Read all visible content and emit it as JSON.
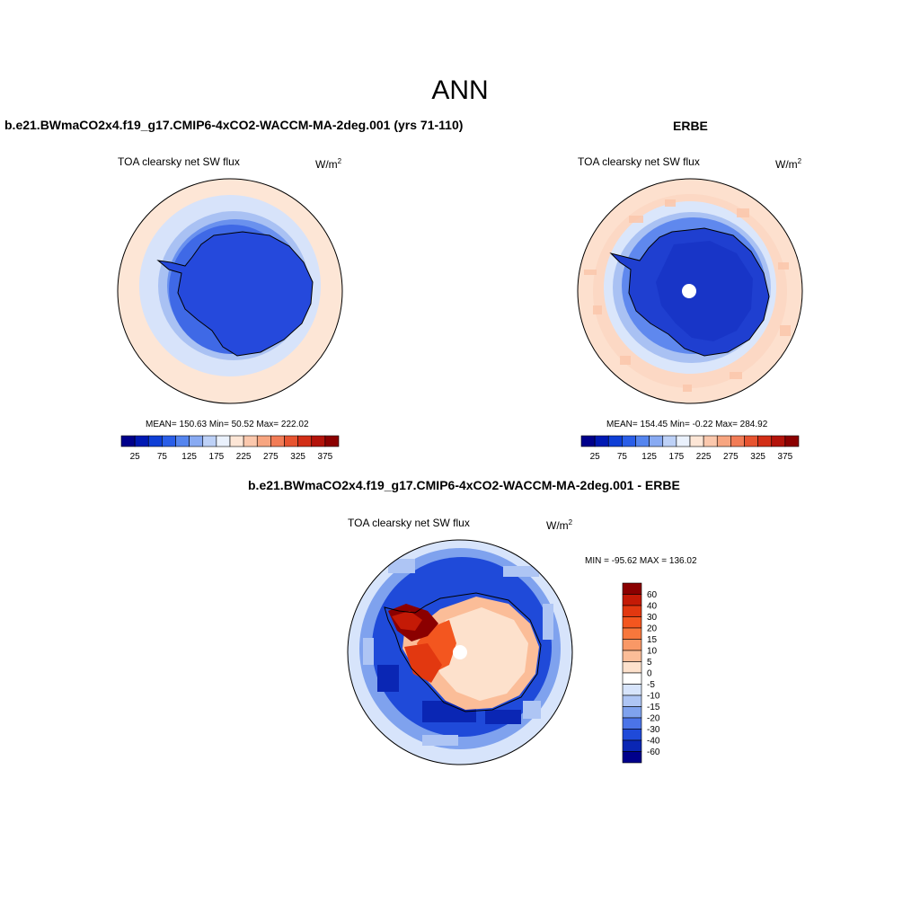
{
  "figure": {
    "title": "ANN"
  },
  "panels": {
    "model": {
      "title": "b.e21.BWmaCO2x4.f19_g17.CMIP6-4xCO2-WACCM-MA-2deg.001 (yrs 71-110)",
      "subtitle": "TOA clearsky net SW flux",
      "units_base": "W/m",
      "units_exp": "2",
      "stats": "MEAN= 150.63  Min=  50.52  Max= 222.02"
    },
    "obs": {
      "title": "ERBE",
      "subtitle": "TOA clearsky net SW flux",
      "units_base": "W/m",
      "units_exp": "2",
      "stats": "MEAN= 154.45  Min=  -0.22  Max= 284.92"
    },
    "diff": {
      "title": "b.e21.BWmaCO2x4.f19_g17.CMIP6-4xCO2-WACCM-MA-2deg.001 - ERBE",
      "subtitle": "TOA clearsky net SW flux",
      "units_base": "W/m",
      "units_exp": "2",
      "stats": "MIN = -95.62 MAX = 136.02"
    }
  },
  "colorbars": {
    "abs_labels": [
      "25",
      "75",
      "125",
      "175",
      "225",
      "275",
      "325",
      "375"
    ],
    "abs_colors": [
      "#00008b",
      "#0019b3",
      "#0f3fd6",
      "#2a5ee8",
      "#5585ef",
      "#88aaf2",
      "#bdd1f7",
      "#eaf1fc",
      "#fde6d6",
      "#fbc8ad",
      "#f7a580",
      "#f27c56",
      "#e75430",
      "#d22e16",
      "#b3130a",
      "#8b0000"
    ],
    "diff_labels": [
      "60",
      "40",
      "30",
      "20",
      "15",
      "10",
      "5",
      "0",
      "-5",
      "-10",
      "-15",
      "-20",
      "-30",
      "-40",
      "-60"
    ],
    "diff_colors": [
      "#8b0000",
      "#c41a06",
      "#e23810",
      "#f3561f",
      "#f7773c",
      "#f99866",
      "#fbbd98",
      "#fde1cc",
      "#ffffff",
      "#d7e4fb",
      "#aec5f4",
      "#7fa2ee",
      "#4b74e8",
      "#1f4ad9",
      "#0a26b4",
      "#00008b"
    ]
  },
  "chart_data": [
    {
      "type": "heatmap",
      "title": "TOA clearsky net SW flux",
      "units": "W/m2",
      "stats": {
        "mean": 150.63,
        "min": 50.52,
        "max": 222.02
      },
      "colorbar_levels": [
        25,
        75,
        125,
        175,
        225,
        275,
        325,
        375
      ]
    },
    {
      "type": "heatmap",
      "title": "TOA clearsky net SW flux",
      "units": "W/m2",
      "stats": {
        "mean": 154.45,
        "min": -0.22,
        "max": 284.92
      },
      "colorbar_levels": [
        25,
        75,
        125,
        175,
        225,
        275,
        325,
        375
      ]
    },
    {
      "type": "heatmap",
      "title": "TOA clearsky net SW flux",
      "units": "W/m2",
      "stats": {
        "min": -95.62,
        "max": 136.02
      },
      "colorbar_levels": [
        -60,
        -40,
        -30,
        -20,
        -15,
        -10,
        -5,
        0,
        5,
        10,
        15,
        20,
        30,
        40,
        60
      ]
    }
  ]
}
